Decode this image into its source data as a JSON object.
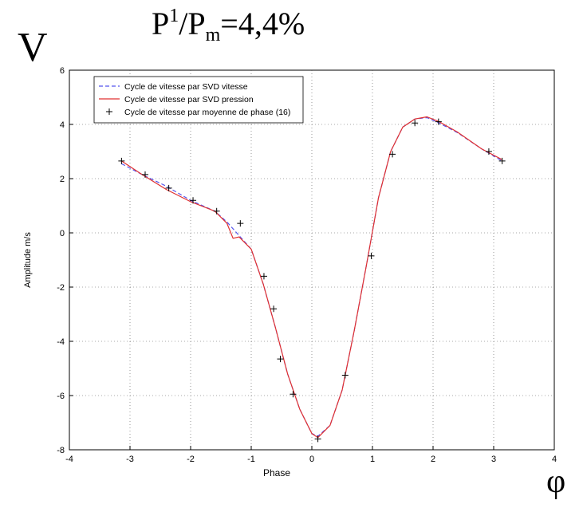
{
  "header": {
    "corner_label": "V",
    "ratio_p": "P",
    "ratio_p_sup": "1",
    "ratio_slash": "/P",
    "ratio_sub": "m",
    "ratio_value": "=4,4%",
    "axis_symbol": "φ"
  },
  "colors": {
    "series_svd_vitesse": "#5555ee",
    "series_svd_pression": "#e03030",
    "series_moyenne": "#000000",
    "grid": "#555555"
  },
  "chart_data": {
    "type": "line",
    "xlabel": "Phase",
    "ylabel": "Amplitude m/s",
    "xlim": [
      -4,
      4
    ],
    "ylim": [
      -8,
      6
    ],
    "xticks": [
      -4,
      -3,
      -2,
      -1,
      0,
      1,
      2,
      3,
      4
    ],
    "yticks": [
      -8,
      -6,
      -4,
      -2,
      0,
      2,
      4,
      6
    ],
    "grid": true,
    "legend_position": "top-left",
    "series": [
      {
        "name": "Cycle de vitesse par SVD vitesse",
        "style": "dashed",
        "x": [
          -3.14,
          -2.8,
          -2.4,
          -2.0,
          -1.6,
          -1.4,
          -1.2,
          -1.0,
          -0.8,
          -0.6,
          -0.4,
          -0.2,
          0.0,
          0.1,
          0.3,
          0.5,
          0.7,
          0.9,
          1.1,
          1.3,
          1.5,
          1.7,
          1.9,
          2.1,
          2.4,
          2.8,
          3.14
        ],
        "y": [
          2.55,
          2.15,
          1.72,
          1.2,
          0.8,
          0.4,
          -0.1,
          -0.6,
          -1.9,
          -3.5,
          -5.2,
          -6.5,
          -7.4,
          -7.5,
          -7.1,
          -5.8,
          -3.6,
          -1.2,
          1.3,
          3.0,
          3.9,
          4.2,
          4.25,
          4.05,
          3.7,
          3.1,
          2.65
        ]
      },
      {
        "name": "Cycle de vitesse par SVD pression",
        "style": "solid",
        "x": [
          -3.14,
          -2.8,
          -2.4,
          -2.0,
          -1.6,
          -1.4,
          -1.3,
          -1.2,
          -1.0,
          -0.8,
          -0.6,
          -0.4,
          -0.2,
          0.0,
          0.1,
          0.3,
          0.5,
          0.7,
          0.9,
          1.1,
          1.3,
          1.5,
          1.7,
          1.9,
          2.1,
          2.4,
          2.8,
          3.14
        ],
        "y": [
          2.65,
          2.15,
          1.6,
          1.15,
          0.8,
          0.35,
          -0.2,
          -0.15,
          -0.6,
          -1.9,
          -3.5,
          -5.2,
          -6.5,
          -7.4,
          -7.55,
          -7.1,
          -5.8,
          -3.6,
          -1.2,
          1.3,
          3.0,
          3.9,
          4.2,
          4.28,
          4.1,
          3.72,
          3.1,
          2.7
        ]
      },
      {
        "name": "Cycle de vitesse par moyenne de phase (16)",
        "style": "markers",
        "x": [
          -3.14,
          -2.75,
          -2.36,
          -1.96,
          -1.57,
          -1.18,
          -0.79,
          -0.63,
          -0.52,
          -0.31,
          0.1,
          0.55,
          0.98,
          1.33,
          1.7,
          2.09,
          2.92,
          3.14
        ],
        "y": [
          2.65,
          2.15,
          1.65,
          1.2,
          0.8,
          0.35,
          -1.6,
          -2.8,
          -4.65,
          -5.95,
          -7.6,
          -5.25,
          -0.85,
          2.9,
          4.05,
          4.1,
          3.0,
          2.65
        ]
      }
    ]
  }
}
